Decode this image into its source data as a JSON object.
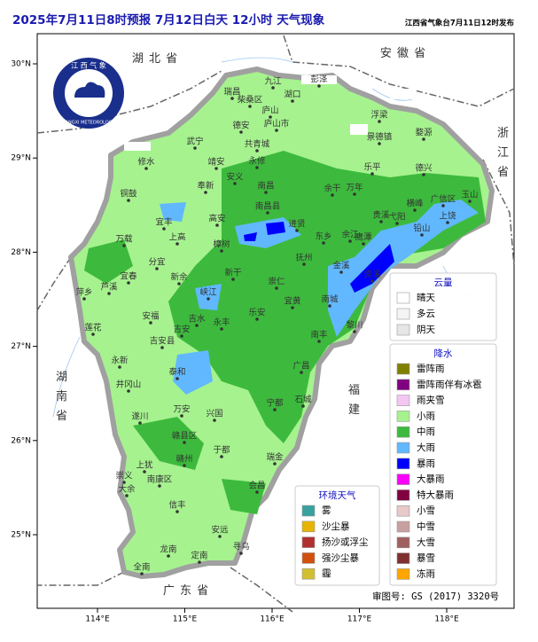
{
  "header": {
    "title": "2025年7月11日8时预报 7月12日白天 12小时  天气现象",
    "issuer": "江西省气象台7月11日12时发布"
  },
  "axes": {
    "lon_ticks": [
      {
        "value": 114,
        "label": "114°E"
      },
      {
        "value": 115,
        "label": "115°E"
      },
      {
        "value": 116,
        "label": "116°E"
      },
      {
        "value": 117,
        "label": "117°E"
      },
      {
        "value": 118,
        "label": "118°E"
      }
    ],
    "lat_ticks": [
      {
        "value": 30,
        "label": "30°N"
      },
      {
        "value": 29,
        "label": "29°N"
      },
      {
        "value": 28,
        "label": "28°N"
      },
      {
        "value": 27,
        "label": "27°N"
      },
      {
        "value": 26,
        "label": "26°N"
      },
      {
        "value": 25,
        "label": "25°N"
      }
    ]
  },
  "provinces": [
    "湖 北 省",
    "安 徽 省",
    "浙\n江\n省",
    "湖\n南\n省",
    "福\n建",
    "广 东 省"
  ],
  "cities": [
    "九江",
    "湖口",
    "彭泽",
    "瑞昌",
    "柴桑区",
    "庐山",
    "德安",
    "庐山市",
    "浮梁",
    "景德镇",
    "婺源",
    "武宁",
    "共青城",
    "永修",
    "修水",
    "靖安",
    "安义",
    "奉新",
    "南昌",
    "南昌县",
    "铜鼓",
    "宜丰",
    "上高",
    "万载",
    "高安",
    "进贤",
    "余干",
    "万年",
    "乐平",
    "德兴",
    "玉山",
    "广信区",
    "上饶",
    "横峰",
    "弋阳",
    "铅山",
    "贵溪",
    "鹰潭",
    "余江",
    "东乡",
    "抚州",
    "金溪",
    "资溪",
    "樟树",
    "分宜",
    "宜春",
    "芦溪",
    "萍乡",
    "新余",
    "新干",
    "峡江",
    "崇仁",
    "乐安",
    "宜黄",
    "南城",
    "南丰",
    "黎川",
    "安福",
    "吉水",
    "吉安",
    "吉安县",
    "永丰",
    "莲花",
    "永新",
    "井冈山",
    "泰和",
    "遂川",
    "万安",
    "兴国",
    "宁都",
    "广昌",
    "石城",
    "赣县区",
    "赣州",
    "于都",
    "瑞金",
    "会昌",
    "上犹",
    "崇义",
    "南康区",
    "大余",
    "信丰",
    "安远",
    "寻乌",
    "定南",
    "龙南",
    "全南"
  ],
  "logo": {
    "top": "江 西 气 象",
    "bottom": "JIANGXI METEOROLOGY"
  },
  "legend_cloud": {
    "title": "云量",
    "items": [
      {
        "name": "晴天",
        "color": "#ffffff"
      },
      {
        "name": "多云",
        "color": "#f4f4f4"
      },
      {
        "name": "阴天",
        "color": "#e6e6e6"
      }
    ]
  },
  "legend_precip": {
    "title": "降水",
    "items": [
      {
        "name": "雷阵雨",
        "color": "#808000"
      },
      {
        "name": "雷阵雨伴有冰雹",
        "color": "#800080"
      },
      {
        "name": "雨夹雪",
        "color": "#f4c6f4"
      },
      {
        "name": "小雨",
        "color": "#a6f28f"
      },
      {
        "name": "中雨",
        "color": "#3dba3d"
      },
      {
        "name": "大雨",
        "color": "#61b8ff"
      },
      {
        "name": "暴雨",
        "color": "#0000fe"
      },
      {
        "name": "大暴雨",
        "color": "#fa00fa"
      },
      {
        "name": "特大暴雨",
        "color": "#800040"
      },
      {
        "name": "小雪",
        "color": "#e8c8c8"
      },
      {
        "name": "中雪",
        "color": "#c8a0a0"
      },
      {
        "name": "大雪",
        "color": "#a06060"
      },
      {
        "name": "暴雪",
        "color": "#803030"
      },
      {
        "name": "冻雨",
        "color": "#ffa500"
      }
    ]
  },
  "legend_env": {
    "title": "环境天气",
    "items": [
      {
        "name": "雾",
        "color": "#3aa0a0"
      },
      {
        "name": "沙尘暴",
        "color": "#e6b400"
      },
      {
        "name": "扬沙或浮尘",
        "color": "#b03030"
      },
      {
        "name": "强沙尘暴",
        "color": "#d05010"
      },
      {
        "name": "霾",
        "color": "#d0c030"
      }
    ]
  },
  "footer": "审图号: GS (2017) 3320号"
}
